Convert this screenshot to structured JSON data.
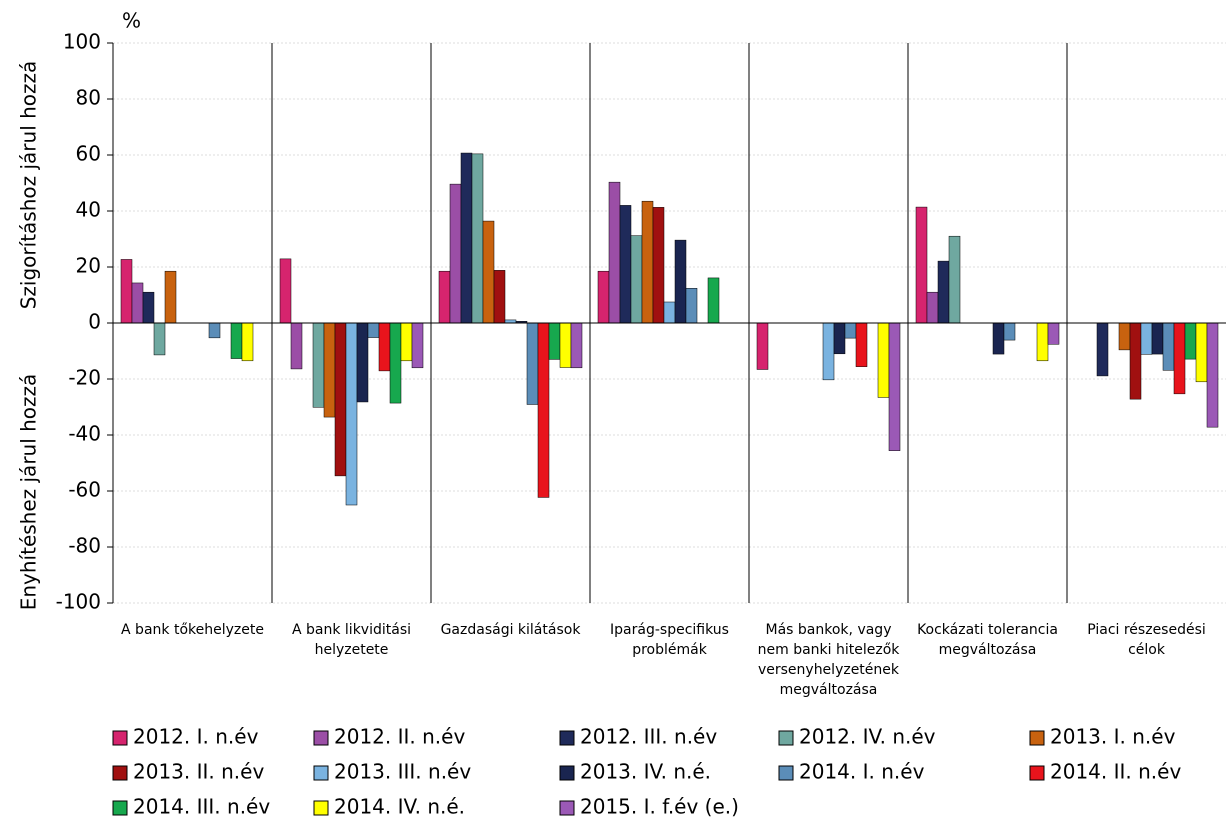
{
  "chart_data": {
    "type": "bar",
    "unit": "%",
    "ylabel_top": "Szigorításhoz járul hozzá",
    "ylabel_bottom": "Enyhítéshez járul hozzá",
    "categories": [
      "A bank tőkehelyzete",
      "A bank likviditási helyzetete",
      "Gazdasági kilátások",
      "Iparág-specifikus problémák",
      "Más bankok, vagy nem banki hitelezők versenyhelyzetének megváltozása",
      "Kockázati tolerancia megváltozása",
      "Piaci részesedési célok"
    ],
    "ylim": [
      -100,
      100
    ],
    "yticks": [
      -100,
      -80,
      -60,
      -40,
      -20,
      0,
      20,
      40,
      60,
      80,
      100
    ],
    "grid": true,
    "series": [
      {
        "name": "2012. I. n.év",
        "color": "#d6246e",
        "values": [
          22.7,
          22.9,
          18.5,
          18.5,
          -16.6,
          41.4,
          0
        ]
      },
      {
        "name": "2012. II. n.év",
        "color": "#9b4ea6",
        "values": [
          14.3,
          -16.4,
          49.6,
          50.3,
          0,
          11,
          0
        ]
      },
      {
        "name": "2012. III. n.év",
        "color": "#1f2a5a",
        "values": [
          11,
          0,
          60.7,
          42,
          0,
          22.1,
          -18.9
        ]
      },
      {
        "name": "2012. IV. n.év",
        "color": "#6fa8a0",
        "values": [
          -11.4,
          -30.1,
          60.4,
          31.2,
          0,
          31,
          0
        ]
      },
      {
        "name": "2013. I. n.év",
        "color": "#c8620f",
        "values": [
          18.5,
          -33.6,
          36.4,
          43.5,
          0,
          0,
          -9.6
        ]
      },
      {
        "name": "2013. II. n.év",
        "color": "#a01010",
        "values": [
          0,
          -54.6,
          18.8,
          41.3,
          0,
          0,
          -27.2
        ]
      },
      {
        "name": "2013. III. n.év",
        "color": "#7ab3e0",
        "values": [
          0,
          -65,
          1.1,
          7.5,
          -20.3,
          0,
          -11.2
        ]
      },
      {
        "name": "2013. IV. n.é.",
        "color": "#1a2550",
        "values": [
          0,
          -28.2,
          0.6,
          29.6,
          -11,
          -11.1,
          -11.1
        ]
      },
      {
        "name": "2014. I. n.év",
        "color": "#5b8db8",
        "values": [
          -5.3,
          -5.2,
          -29.1,
          12.4,
          -5.4,
          -6.1,
          -16.9
        ]
      },
      {
        "name": "2014. II. n.év",
        "color": "#e8141c",
        "values": [
          0,
          -17.1,
          -62.3,
          0,
          -15.6,
          0,
          -25.3
        ]
      },
      {
        "name": "2014. III. n.év",
        "color": "#17a84e",
        "values": [
          -12.7,
          -28.6,
          -13,
          16.1,
          0,
          0,
          -12.9
        ]
      },
      {
        "name": "2014. IV. n.é.",
        "color": "#ffff00",
        "values": [
          -13.5,
          -13.5,
          -15.9,
          0,
          -26.6,
          -13.5,
          -21
        ]
      },
      {
        "name": "2015. I. f.év (e.)",
        "color": "#9b59b6",
        "values": [
          0,
          -16,
          -16,
          0,
          -45.6,
          -7.6,
          -37.2
        ]
      }
    ]
  }
}
